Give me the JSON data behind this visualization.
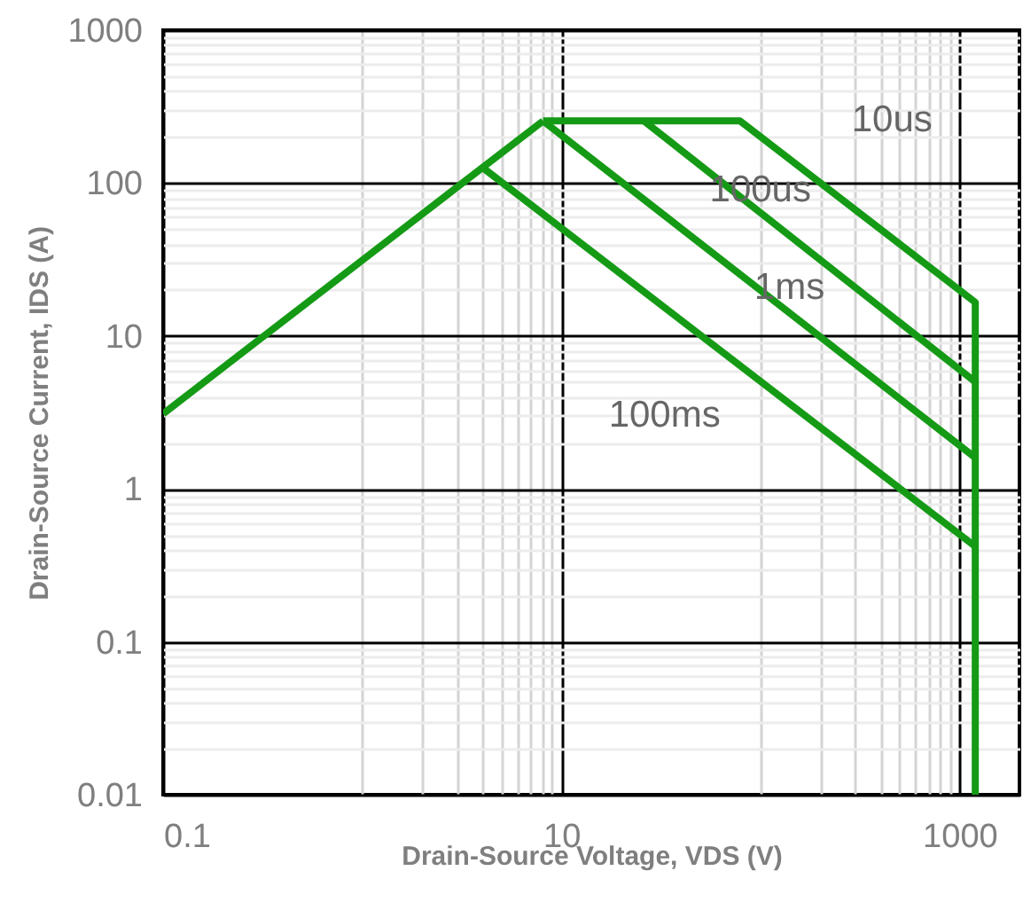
{
  "chart_data": {
    "type": "line",
    "xlabel": "Drain-Source Voltage, VDS (V)",
    "ylabel": "Drain-Source Current, IDS (A)",
    "log": "xy",
    "grid": true,
    "xlim": [
      0.1,
      2000
    ],
    "ylim": [
      0.01,
      1000
    ],
    "xticks": [
      0.1,
      {
        "value": 1,
        "label": null
      },
      {
        "value": 2,
        "label": null
      },
      {
        "value": 3,
        "label": null
      },
      {
        "value": 4,
        "label": null
      },
      {
        "value": 5,
        "label": null
      },
      {
        "value": 6,
        "label": null
      },
      {
        "value": 7,
        "label": null
      },
      {
        "value": 8,
        "label": null
      },
      {
        "value": 9,
        "label": null
      },
      10,
      {
        "value": 100,
        "label": null
      },
      {
        "value": 200,
        "label": null
      },
      {
        "value": 300,
        "label": null
      },
      {
        "value": 400,
        "label": null
      },
      {
        "value": 500,
        "label": null
      },
      {
        "value": 600,
        "label": null
      },
      {
        "value": 700,
        "label": null
      },
      {
        "value": 800,
        "label": null
      },
      {
        "value": 900,
        "label": null
      },
      1000
    ],
    "yticks": [
      0.01,
      {
        "value": 0.02,
        "label": null
      },
      {
        "value": 0.03,
        "label": null
      },
      {
        "value": 0.04,
        "label": null
      },
      {
        "value": 0.05,
        "label": null
      },
      {
        "value": 0.06,
        "label": null
      },
      {
        "value": 0.07,
        "label": null
      },
      {
        "value": 0.08,
        "label": null
      },
      {
        "value": 0.09,
        "label": null
      },
      0.1,
      {
        "value": 0.2,
        "label": null
      },
      {
        "value": 0.3,
        "label": null
      },
      {
        "value": 0.4,
        "label": null
      },
      {
        "value": 0.5,
        "label": null
      },
      {
        "value": 0.6,
        "label": null
      },
      {
        "value": 0.7,
        "label": null
      },
      {
        "value": 0.8,
        "label": null
      },
      {
        "value": 0.9,
        "label": null
      },
      1,
      {
        "value": 2,
        "label": null
      },
      {
        "value": 3,
        "label": null
      },
      {
        "value": 4,
        "label": null
      },
      {
        "value": 5,
        "label": null
      },
      {
        "value": 6,
        "label": null
      },
      {
        "value": 7,
        "label": null
      },
      {
        "value": 8,
        "label": null
      },
      {
        "value": 9,
        "label": null
      },
      10,
      {
        "value": 20,
        "label": null
      },
      {
        "value": 30,
        "label": null
      },
      {
        "value": 40,
        "label": null
      },
      {
        "value": 50,
        "label": null
      },
      {
        "value": 60,
        "label": null
      },
      {
        "value": 70,
        "label": null
      },
      {
        "value": 80,
        "label": null
      },
      {
        "value": 90,
        "label": null
      },
      100,
      {
        "value": 200,
        "label": null
      },
      {
        "value": 300,
        "label": null
      },
      {
        "value": 400,
        "label": null
      },
      {
        "value": 500,
        "label": null
      },
      {
        "value": 600,
        "label": null
      },
      {
        "value": 700,
        "label": null
      },
      {
        "value": 800,
        "label": null
      },
      {
        "value": 900,
        "label": null
      },
      1000
    ],
    "series": [
      {
        "color": "#159a15",
        "x": [
          0.1,
          8.1
        ],
        "values": [
          3.1,
          255
        ]
      },
      {
        "name": "10us",
        "color": "#159a15",
        "x": [
          8.1,
          79,
          1200,
          1200
        ],
        "values": [
          255,
          255,
          16.6,
          0.01
        ]
      },
      {
        "name": "100us",
        "color": "#159a15",
        "x": [
          26,
          1200
        ],
        "values": [
          255,
          5
        ]
      },
      {
        "name": "1ms",
        "color": "#159a15",
        "x": [
          8.1,
          1200
        ],
        "values": [
          255,
          1.6
        ]
      },
      {
        "name": "100ms",
        "color": "#159a15",
        "x": [
          4,
          1200
        ],
        "values": [
          127,
          0.42
        ]
      }
    ]
  }
}
